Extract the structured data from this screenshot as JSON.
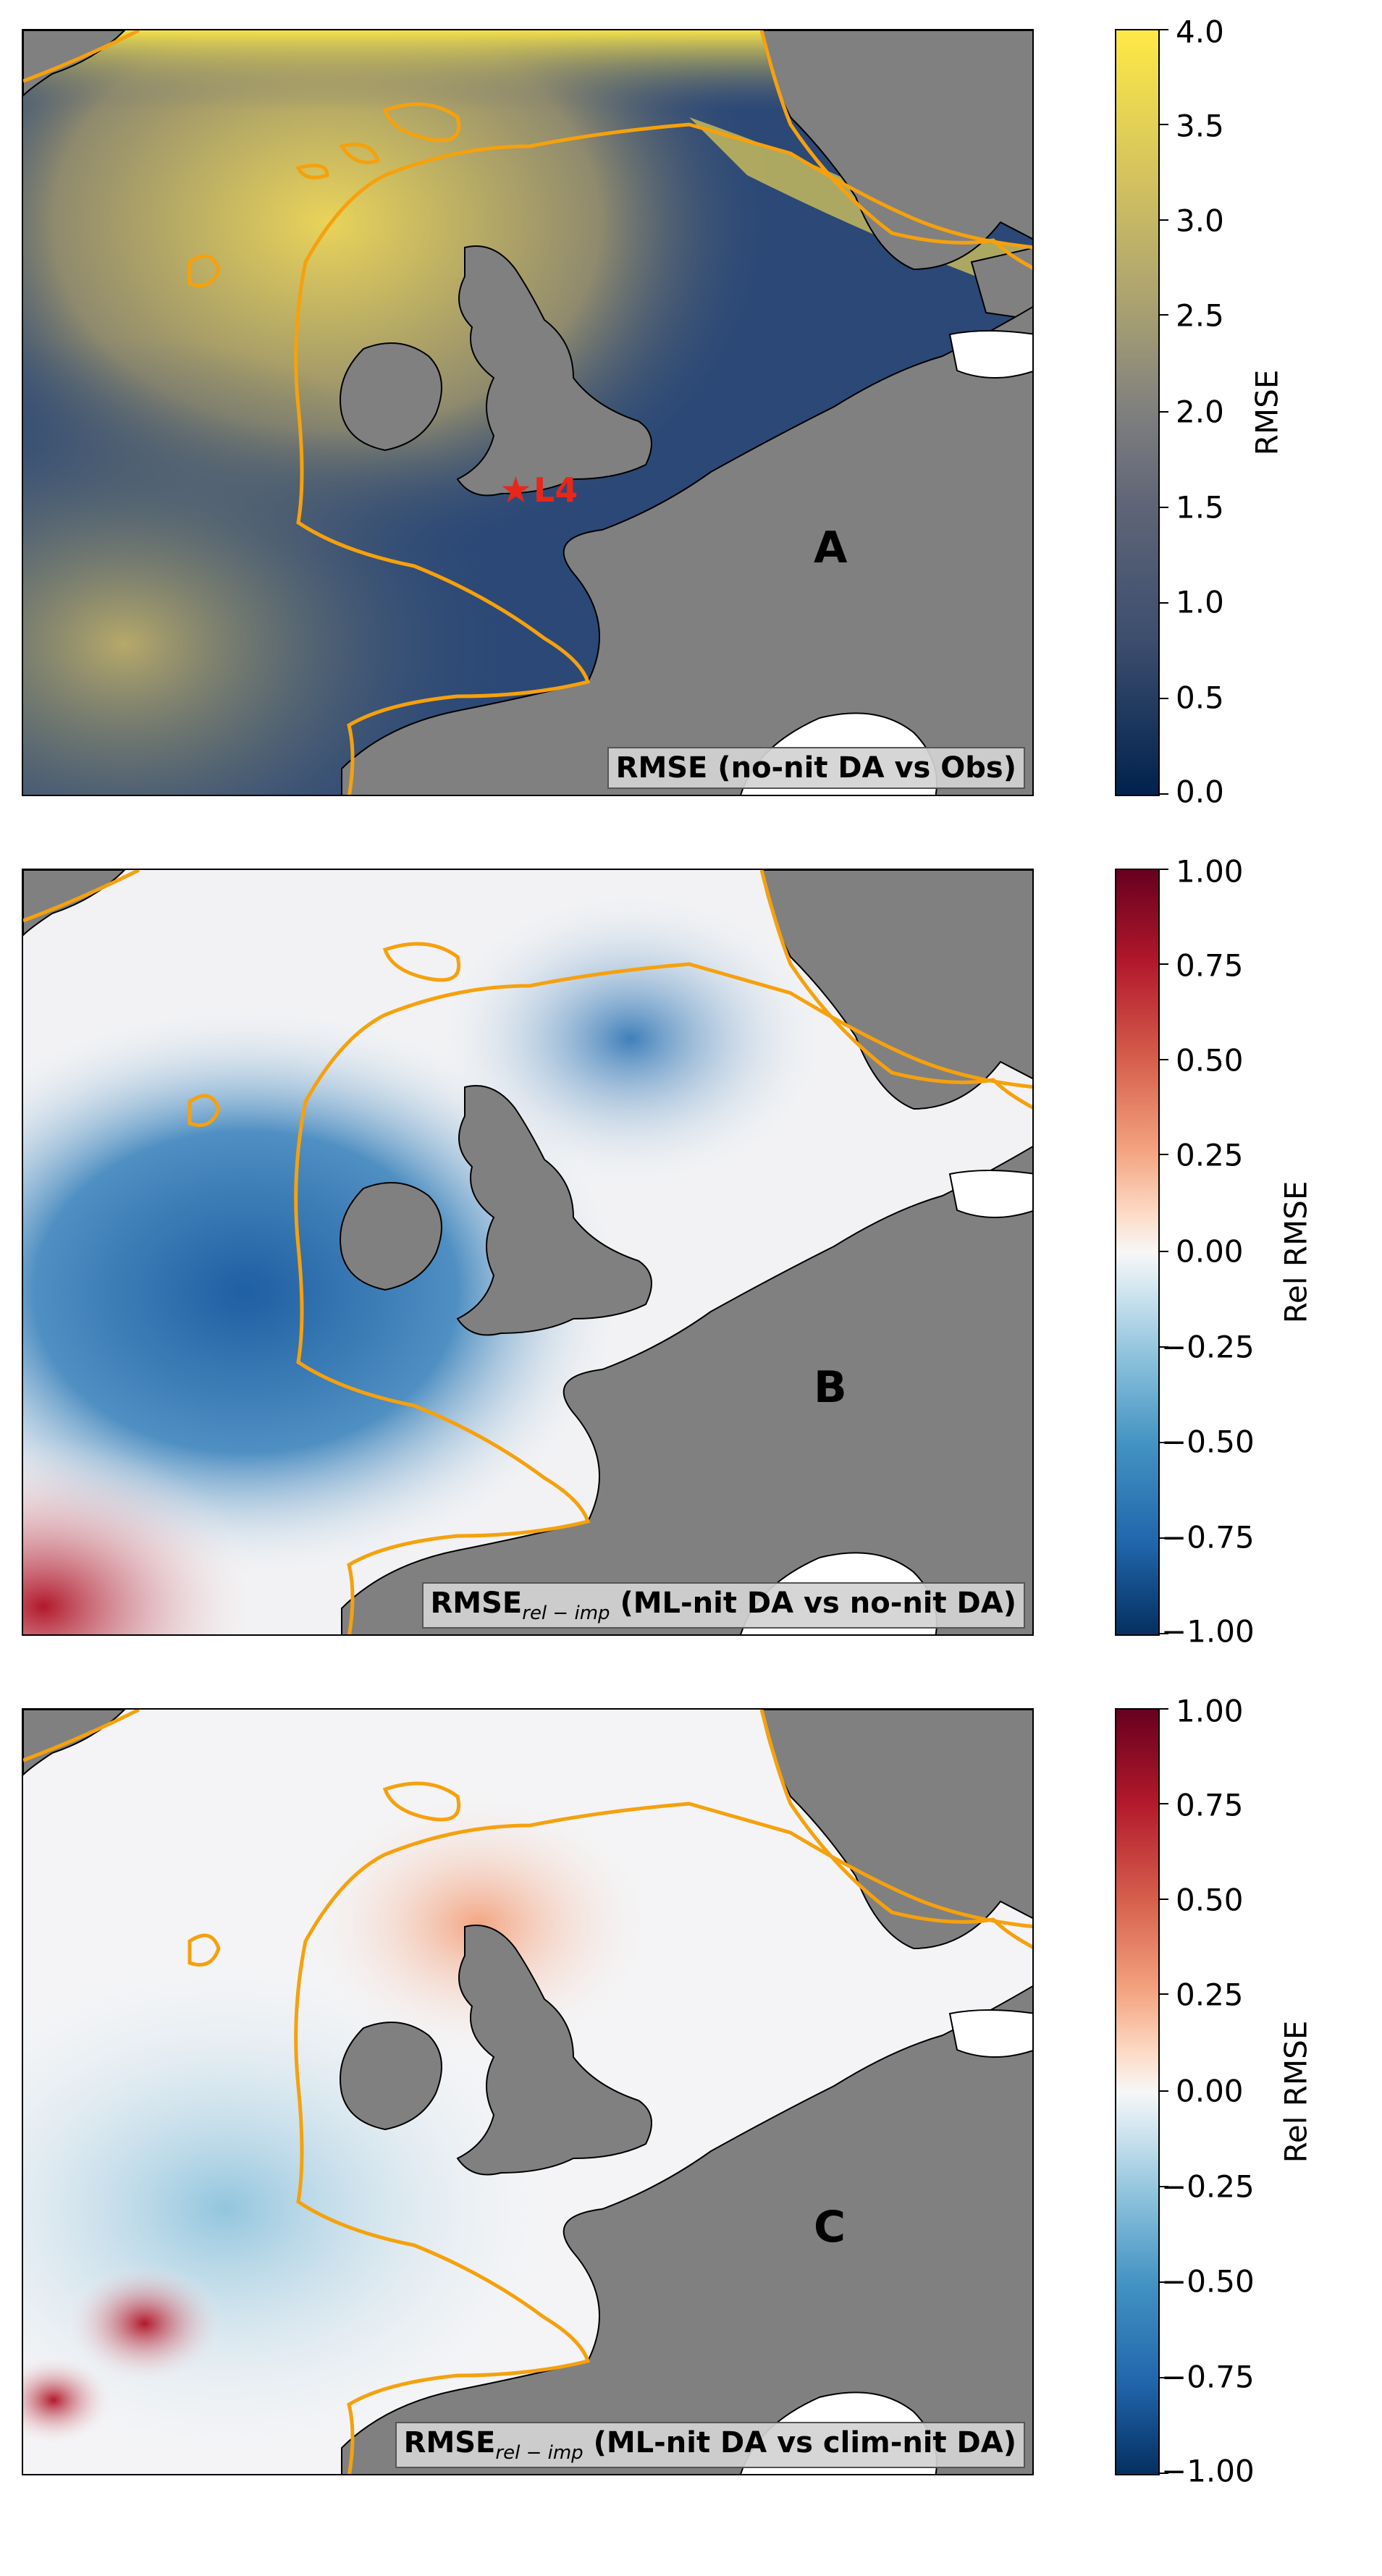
{
  "panels": [
    {
      "id": "A",
      "letter": "A",
      "caption": "RMSE (no-nit DA vs Obs)",
      "caption_sub": "",
      "caption_rest": "",
      "marker_label": "L4",
      "colorbar": {
        "label": "RMSE",
        "colormap": "cividis",
        "range": [
          0.0,
          4.0
        ],
        "ticks": [
          "4.0",
          "3.5",
          "3.0",
          "2.5",
          "2.0",
          "1.5",
          "1.0",
          "0.5",
          "0.0"
        ],
        "colors": [
          "#ffe945",
          "#d2c160",
          "#a49d73",
          "#7f7f7f",
          "#5f6577",
          "#3c4d6e",
          "#00224e"
        ]
      }
    },
    {
      "id": "B",
      "letter": "B",
      "caption": "RMSE",
      "caption_sub": "rel − imp",
      "caption_rest": " (ML-nit DA vs no-nit DA)",
      "colorbar": {
        "label": "Rel RMSE",
        "colormap": "RdBu_r",
        "range": [
          -1.0,
          1.0
        ],
        "ticks": [
          "1.00",
          "0.75",
          "0.50",
          "0.25",
          "0.00",
          "−0.25",
          "−0.50",
          "−0.75",
          "−1.00"
        ],
        "colors": [
          "#67001f",
          "#b2182b",
          "#d6604d",
          "#f4a582",
          "#fddbc7",
          "#f7f7f7",
          "#d1e5f0",
          "#92c5de",
          "#4393c3",
          "#2166ac",
          "#053061"
        ]
      }
    },
    {
      "id": "C",
      "letter": "C",
      "caption": "RMSE",
      "caption_sub": "rel − imp",
      "caption_rest": " (ML-nit DA vs clim-nit DA)",
      "colorbar": {
        "label": "Rel RMSE",
        "colormap": "RdBu_r",
        "range": [
          -1.0,
          1.0
        ],
        "ticks": [
          "1.00",
          "0.75",
          "0.50",
          "0.25",
          "0.00",
          "−0.25",
          "−0.50",
          "−0.75",
          "−1.00"
        ],
        "colors": [
          "#67001f",
          "#b2182b",
          "#d6604d",
          "#f4a582",
          "#fddbc7",
          "#f7f7f7",
          "#d1e5f0",
          "#92c5de",
          "#4393c3",
          "#2166ac",
          "#053061"
        ]
      }
    }
  ],
  "colors": {
    "land": "#808080",
    "shelf_contour": "#f5a10e",
    "marker": "#e8261a"
  }
}
